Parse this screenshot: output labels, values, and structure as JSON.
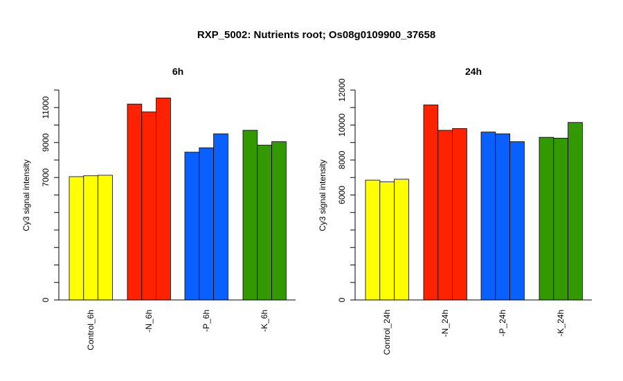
{
  "title": "RXP_5002: Nutrients root; Os08g0109900_37658",
  "chart_data": [
    {
      "type": "bar",
      "title": "6h",
      "ylabel": "Cy3 signal intensity",
      "categories": [
        "Control_6h",
        "-N_6h",
        "-P_6h",
        "-K_6h"
      ],
      "colors": [
        "#ffff00",
        "#ff2200",
        "#0a5fff",
        "#339900"
      ],
      "values": [
        [
          7050,
          7100,
          7130
        ],
        [
          11200,
          10750,
          11550
        ],
        [
          8450,
          8700,
          9500
        ],
        [
          9700,
          8850,
          9050
        ]
      ],
      "yticks": [
        0,
        7000,
        9000,
        11000
      ],
      "ylim": [
        0,
        12000
      ]
    },
    {
      "type": "bar",
      "title": "24h",
      "ylabel": "Cy3 signal intensity",
      "categories": [
        "Control_24h",
        "-N_24h",
        "-P_24h",
        "-K_24h"
      ],
      "colors": [
        "#ffff00",
        "#ff2200",
        "#0a5fff",
        "#339900"
      ],
      "values": [
        [
          6850,
          6750,
          6900
        ],
        [
          11150,
          9700,
          9800
        ],
        [
          9600,
          9500,
          9050
        ],
        [
          9300,
          9250,
          10150
        ]
      ],
      "yticks": [
        0,
        6000,
        8000,
        10000,
        12000
      ],
      "ylim": [
        0,
        12000
      ]
    }
  ]
}
